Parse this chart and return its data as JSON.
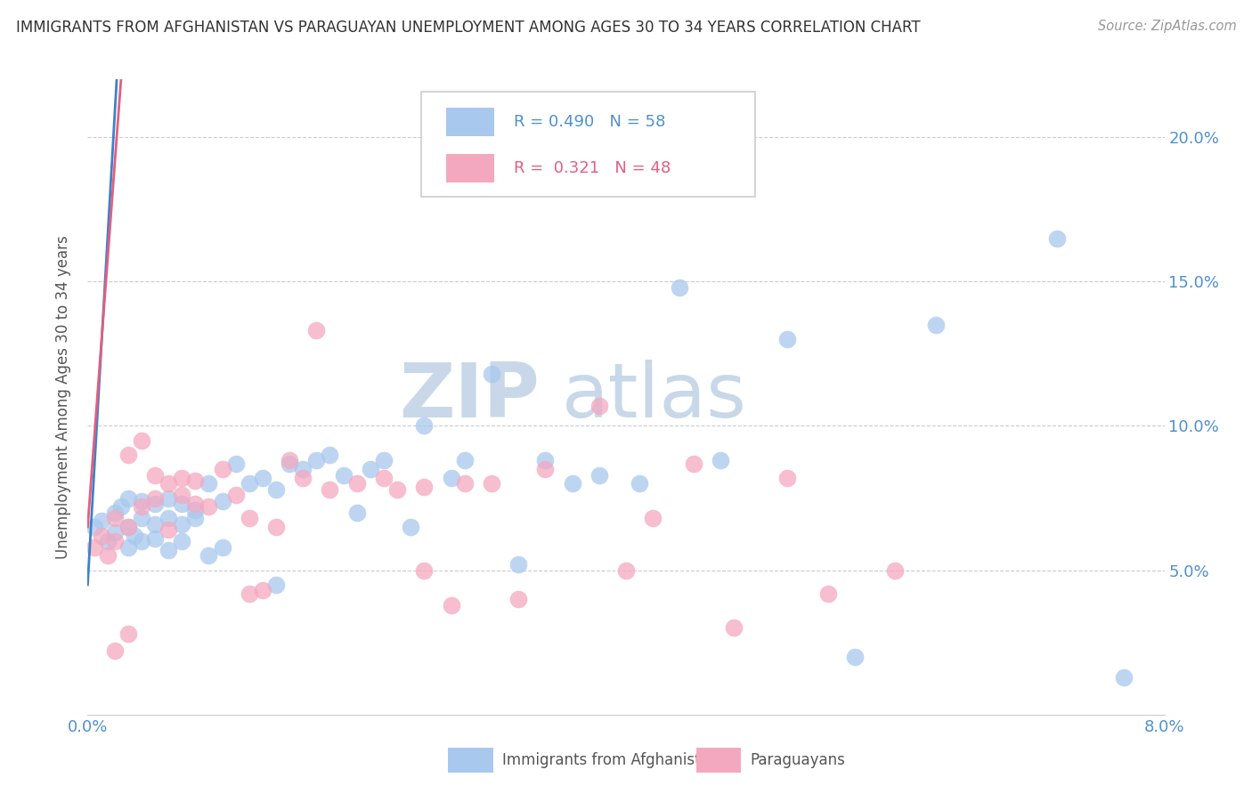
{
  "title": "IMMIGRANTS FROM AFGHANISTAN VS PARAGUAYAN UNEMPLOYMENT AMONG AGES 30 TO 34 YEARS CORRELATION CHART",
  "source": "Source: ZipAtlas.com",
  "ylabel": "Unemployment Among Ages 30 to 34 years",
  "xlim": [
    0.0,
    0.08
  ],
  "ylim": [
    0.0,
    0.22
  ],
  "yticks": [
    0.05,
    0.1,
    0.15,
    0.2
  ],
  "ytick_labels": [
    "5.0%",
    "10.0%",
    "15.0%",
    "20.0%"
  ],
  "xticks": [
    0.0,
    0.02,
    0.04,
    0.06,
    0.08
  ],
  "xtick_labels": [
    "0.0%",
    "",
    "",
    "",
    "8.0%"
  ],
  "legend_blue_label": "Immigrants from Afghanistan",
  "legend_pink_label": "Paraguayans",
  "R_blue": 0.49,
  "N_blue": 58,
  "R_pink": 0.321,
  "N_pink": 48,
  "blue_color": "#A8C8EE",
  "pink_color": "#F4A8C0",
  "line_blue_color": "#4080C8",
  "line_pink_color": "#E06080",
  "tick_color": "#5090D0",
  "watermark_color": "#C8D8E8",
  "blue_scatter_x": [
    0.0005,
    0.001,
    0.0015,
    0.002,
    0.002,
    0.0025,
    0.003,
    0.003,
    0.003,
    0.0035,
    0.004,
    0.004,
    0.004,
    0.005,
    0.005,
    0.005,
    0.006,
    0.006,
    0.006,
    0.007,
    0.007,
    0.007,
    0.008,
    0.008,
    0.009,
    0.009,
    0.01,
    0.01,
    0.011,
    0.012,
    0.013,
    0.014,
    0.014,
    0.015,
    0.016,
    0.017,
    0.018,
    0.019,
    0.02,
    0.021,
    0.022,
    0.024,
    0.025,
    0.027,
    0.028,
    0.03,
    0.032,
    0.034,
    0.036,
    0.038,
    0.041,
    0.044,
    0.047,
    0.052,
    0.057,
    0.063,
    0.072,
    0.077
  ],
  "blue_scatter_y": [
    0.065,
    0.067,
    0.06,
    0.07,
    0.063,
    0.072,
    0.065,
    0.058,
    0.075,
    0.062,
    0.068,
    0.074,
    0.06,
    0.066,
    0.073,
    0.061,
    0.075,
    0.068,
    0.057,
    0.073,
    0.066,
    0.06,
    0.068,
    0.071,
    0.055,
    0.08,
    0.058,
    0.074,
    0.087,
    0.08,
    0.082,
    0.078,
    0.045,
    0.087,
    0.085,
    0.088,
    0.09,
    0.083,
    0.07,
    0.085,
    0.088,
    0.065,
    0.1,
    0.082,
    0.088,
    0.118,
    0.052,
    0.088,
    0.08,
    0.083,
    0.08,
    0.148,
    0.088,
    0.13,
    0.02,
    0.135,
    0.165,
    0.013
  ],
  "pink_scatter_x": [
    0.0005,
    0.001,
    0.0015,
    0.002,
    0.002,
    0.003,
    0.003,
    0.004,
    0.004,
    0.005,
    0.005,
    0.006,
    0.006,
    0.007,
    0.007,
    0.008,
    0.008,
    0.009,
    0.01,
    0.011,
    0.012,
    0.013,
    0.014,
    0.015,
    0.016,
    0.017,
    0.018,
    0.02,
    0.022,
    0.023,
    0.025,
    0.027,
    0.028,
    0.03,
    0.032,
    0.034,
    0.038,
    0.04,
    0.042,
    0.045,
    0.048,
    0.052,
    0.055,
    0.06,
    0.025,
    0.002,
    0.003,
    0.012
  ],
  "pink_scatter_y": [
    0.058,
    0.062,
    0.055,
    0.068,
    0.06,
    0.065,
    0.09,
    0.072,
    0.095,
    0.075,
    0.083,
    0.08,
    0.064,
    0.076,
    0.082,
    0.073,
    0.081,
    0.072,
    0.085,
    0.076,
    0.068,
    0.043,
    0.065,
    0.088,
    0.082,
    0.133,
    0.078,
    0.08,
    0.082,
    0.078,
    0.05,
    0.038,
    0.08,
    0.08,
    0.04,
    0.085,
    0.107,
    0.05,
    0.068,
    0.087,
    0.03,
    0.082,
    0.042,
    0.05,
    0.079,
    0.022,
    0.028,
    0.042
  ]
}
